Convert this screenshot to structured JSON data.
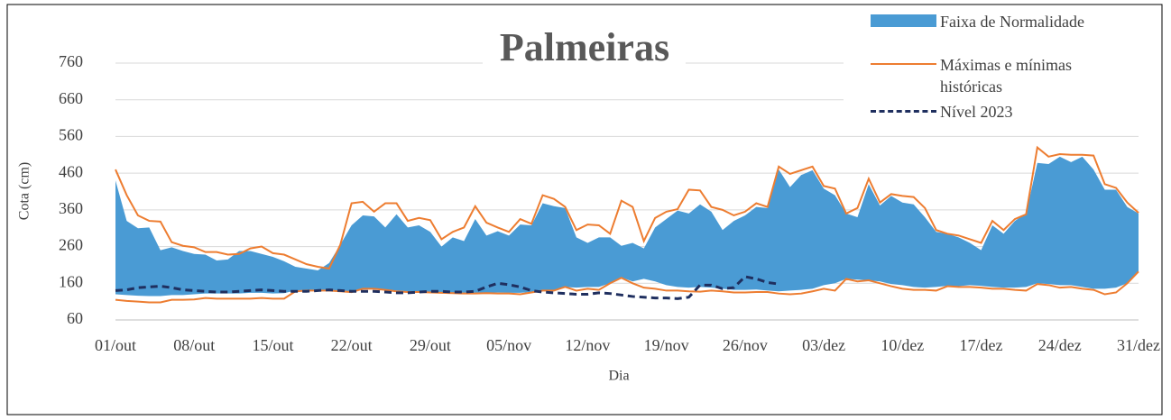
{
  "chart_data": {
    "type": "line",
    "title": "Palmeiras",
    "xlabel": "Dia",
    "ylabel": "Cota (cm)",
    "categories": [
      "01/out",
      null,
      null,
      null,
      null,
      null,
      null,
      "08/out",
      null,
      null,
      null,
      null,
      null,
      null,
      "15/out",
      null,
      null,
      null,
      null,
      null,
      null,
      "22/out",
      null,
      null,
      null,
      null,
      null,
      null,
      "29/out",
      null,
      null,
      null,
      null,
      null,
      null,
      "05/nov",
      null,
      null,
      null,
      null,
      null,
      null,
      "12/nov",
      null,
      null,
      null,
      null,
      null,
      null,
      "19/nov",
      null,
      null,
      null,
      null,
      null,
      null,
      "26/nov",
      null,
      null,
      null,
      null,
      null,
      null,
      "03/dez",
      null,
      null,
      null,
      null,
      null,
      null,
      "10/dez",
      null,
      null,
      null,
      null,
      null,
      null,
      "17/dez",
      null,
      null,
      null,
      null,
      null,
      null,
      "24/dez",
      null,
      null,
      null,
      null,
      null,
      null,
      "31/dez"
    ],
    "ylim": [
      60,
      760
    ],
    "yticks": [
      60,
      160,
      260,
      360,
      460,
      560,
      660,
      760
    ],
    "grid": true,
    "series": [
      {
        "name": "Faixa de Normalidade",
        "color": "#4a9bd4",
        "upper": [
          440,
          330,
          310,
          312,
          250,
          258,
          248,
          240,
          238,
          222,
          225,
          248,
          248,
          240,
          232,
          220,
          205,
          200,
          195,
          215,
          265,
          318,
          345,
          342,
          312,
          348,
          312,
          318,
          300,
          260,
          285,
          275,
          335,
          290,
          302,
          290,
          320,
          318,
          378,
          370,
          365,
          285,
          270,
          285,
          285,
          262,
          270,
          255,
          312,
          335,
          358,
          350,
          375,
          355,
          305,
          330,
          345,
          368,
          365,
          470,
          422,
          455,
          468,
          418,
          400,
          350,
          340,
          430,
          372,
          398,
          380,
          375,
          340,
          300,
          295,
          285,
          270,
          250,
          318,
          295,
          330,
          350,
          488,
          485,
          505,
          490,
          505,
          470,
          415,
          415,
          368,
          350
        ],
        "lower": [
          130,
          128,
          126,
          125,
          125,
          128,
          128,
          130,
          132,
          132,
          132,
          132,
          134,
          134,
          132,
          133,
          140,
          142,
          142,
          142,
          140,
          138,
          146,
          146,
          142,
          140,
          138,
          137,
          136,
          135,
          134,
          134,
          134,
          135,
          135,
          134,
          134,
          136,
          141,
          141,
          150,
          148,
          150,
          150,
          160,
          176,
          165,
          172,
          165,
          155,
          150,
          148,
          150,
          148,
          145,
          142,
          142,
          143,
          140,
          138,
          140,
          142,
          145,
          155,
          160,
          172,
          170,
          168,
          165,
          158,
          155,
          150,
          148,
          150,
          153,
          152,
          155,
          153,
          150,
          148,
          148,
          150,
          160,
          158,
          155,
          155,
          150,
          145,
          145,
          148,
          160,
          192
        ]
      },
      {
        "name": "Máximas e mínimas históricas",
        "color": "#ed7d31",
        "max": [
          470,
          400,
          345,
          330,
          328,
          272,
          262,
          258,
          245,
          245,
          238,
          240,
          255,
          260,
          242,
          238,
          225,
          212,
          205,
          200,
          265,
          378,
          382,
          355,
          378,
          378,
          330,
          338,
          332,
          280,
          300,
          312,
          370,
          325,
          312,
          300,
          335,
          322,
          400,
          390,
          368,
          305,
          320,
          318,
          295,
          385,
          368,
          275,
          338,
          355,
          362,
          415,
          413,
          368,
          360,
          345,
          355,
          378,
          368,
          478,
          458,
          468,
          478,
          425,
          418,
          350,
          365,
          445,
          380,
          403,
          398,
          395,
          365,
          305,
          295,
          290,
          280,
          270,
          330,
          305,
          335,
          348,
          530,
          505,
          512,
          510,
          510,
          508,
          430,
          420,
          380,
          352
        ],
        "min": [
          115,
          112,
          110,
          108,
          108,
          115,
          115,
          116,
          120,
          118,
          118,
          118,
          118,
          120,
          118,
          118,
          138,
          140,
          140,
          140,
          138,
          136,
          145,
          145,
          142,
          138,
          136,
          136,
          135,
          134,
          133,
          132,
          132,
          133,
          132,
          132,
          130,
          135,
          140,
          140,
          150,
          140,
          145,
          142,
          160,
          175,
          160,
          148,
          145,
          140,
          140,
          138,
          137,
          140,
          138,
          135,
          135,
          136,
          136,
          132,
          130,
          132,
          138,
          145,
          140,
          172,
          165,
          168,
          160,
          152,
          145,
          142,
          142,
          140,
          152,
          150,
          150,
          148,
          145,
          145,
          142,
          140,
          158,
          155,
          148,
          150,
          145,
          142,
          130,
          135,
          160,
          192
        ]
      },
      {
        "name": "Nível 2023",
        "color": "#1f2f5f",
        "dashed": true,
        "values": [
          140,
          142,
          148,
          150,
          152,
          148,
          142,
          140,
          138,
          136,
          136,
          138,
          140,
          142,
          140,
          138,
          138,
          138,
          140,
          142,
          140,
          138,
          138,
          138,
          136,
          134,
          134,
          136,
          138,
          138,
          136,
          136,
          138,
          150,
          160,
          156,
          150,
          140,
          136,
          134,
          132,
          130,
          130,
          134,
          132,
          128,
          124,
          122,
          120,
          120,
          118,
          122,
          155,
          155,
          145,
          148,
          178,
          172,
          162,
          158,
          null,
          null,
          null,
          null,
          null,
          null,
          null,
          null,
          null,
          null,
          null,
          null,
          null,
          null,
          null,
          null,
          null,
          null,
          null,
          null,
          null,
          null,
          null,
          null,
          null,
          null,
          null,
          null,
          null,
          null,
          null,
          null
        ]
      }
    ]
  }
}
